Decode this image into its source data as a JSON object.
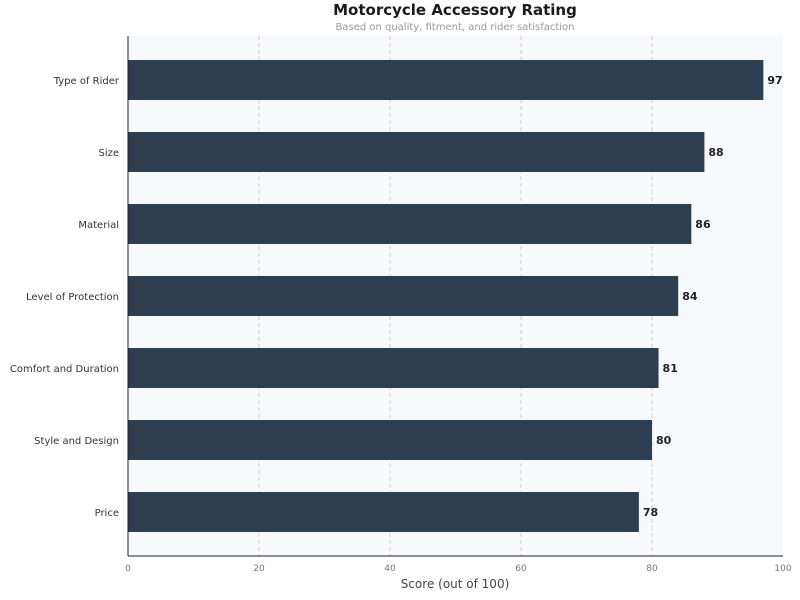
{
  "chart_data": {
    "type": "bar",
    "orientation": "horizontal",
    "title": "Motorcycle Accessory Rating",
    "subtitle": "Based on quality, fitment, and rider satisfaction",
    "xlabel": "Score (out of 100)",
    "ylabel": "",
    "xlim": [
      0,
      100
    ],
    "xticks": [
      0,
      20,
      40,
      60,
      80,
      100
    ],
    "grid": "vertical dashed",
    "categories": [
      "Type of Rider",
      "Size",
      "Material",
      "Level of Protection",
      "Comfort and Duration",
      "Style and Design",
      "Price"
    ],
    "values": [
      97,
      88,
      86,
      84,
      81,
      80,
      78
    ],
    "colors": {
      "bar": "#2c3e50",
      "plot_bg": "#f7f9fc",
      "grid": "#cccccc"
    }
  }
}
